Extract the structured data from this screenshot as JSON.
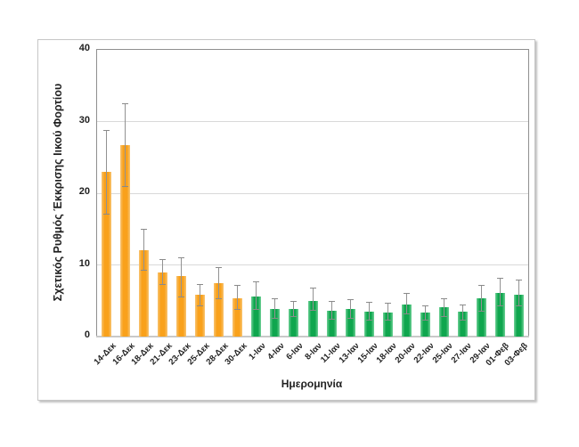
{
  "chart_data": {
    "type": "bar",
    "title": "",
    "xlabel": "Ημερομηνία",
    "ylabel": "Σχετικός Ρυθμός Έκκρισης Ιικού Φορτίου",
    "ylim": [
      0,
      40
    ],
    "yticks": [
      0,
      10,
      20,
      30,
      40
    ],
    "grid": true,
    "legend": "none",
    "categories": [
      "14-Δεκ",
      "16-Δεκ",
      "18-Δεκ",
      "21-Δεκ",
      "23-Δεκ",
      "25-Δεκ",
      "28-Δεκ",
      "30-Δεκ",
      "1-Ιαν",
      "4-Ιαν",
      "6-Ιαν",
      "8-Ιαν",
      "11-Ιαν",
      "13-Ιαν",
      "15-Ιαν",
      "18-Ιαν",
      "20-Ιαν",
      "22-Ιαν",
      "25-Ιαν",
      "27-Ιαν",
      "29-Ιαν",
      "01-Φεβ",
      "03-Φεβ"
    ],
    "values": [
      23.0,
      26.7,
      12.1,
      9.0,
      8.4,
      5.8,
      7.5,
      5.4,
      5.6,
      3.8,
      3.9,
      5.0,
      3.6,
      3.9,
      3.5,
      3.4,
      4.5,
      3.4,
      4.1,
      3.5,
      5.3,
      6.1,
      5.9
    ],
    "error_low": [
      17.2,
      21.0,
      9.3,
      7.3,
      5.6,
      4.3,
      5.3,
      3.8,
      3.9,
      2.6,
      2.8,
      3.7,
      2.5,
      2.6,
      2.4,
      2.3,
      3.2,
      2.3,
      2.9,
      2.4,
      3.6,
      4.3,
      4.3
    ],
    "error_high": [
      28.8,
      32.5,
      15.0,
      10.8,
      11.0,
      7.3,
      9.7,
      7.2,
      7.7,
      5.3,
      5.0,
      6.8,
      5.0,
      5.2,
      4.9,
      4.7,
      6.1,
      4.4,
      5.4,
      4.5,
      7.2,
      8.2,
      7.9
    ],
    "groups": [
      "dec",
      "dec",
      "dec",
      "dec",
      "dec",
      "dec",
      "dec",
      "dec",
      "jan",
      "jan",
      "jan",
      "jan",
      "jan",
      "jan",
      "jan",
      "jan",
      "jan",
      "jan",
      "jan",
      "jan",
      "jan",
      "jan",
      "jan"
    ],
    "palette": {
      "dec": {
        "fill": "#F9A11B",
        "edge": "#F8C472"
      },
      "jan": {
        "fill": "#0FA64E",
        "edge": "#6ED096"
      }
    },
    "colors": {
      "error_bar": "#929292",
      "gridline": "#D9D9D9",
      "plot_border": "#8F8F8F",
      "text": "#1F1F1F"
    }
  }
}
